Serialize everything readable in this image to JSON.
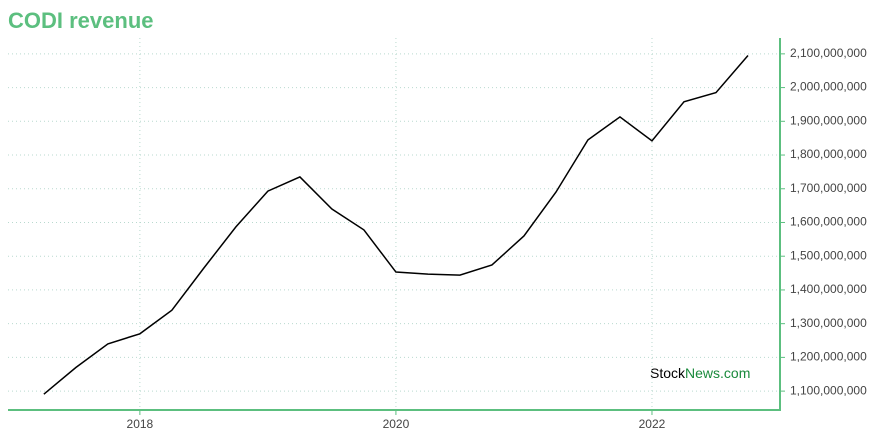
{
  "chart_data": {
    "type": "line",
    "title": "CODI revenue",
    "x": [
      2017.25,
      2017.5,
      2017.75,
      2018,
      2018.25,
      2018.5,
      2018.75,
      2019,
      2019.25,
      2019.5,
      2019.75,
      2020,
      2020.25,
      2020.5,
      2020.75,
      2021,
      2021.25,
      2021.5,
      2021.75,
      2022,
      2022.25,
      2022.5,
      2022.75
    ],
    "series": [
      {
        "name": "Revenue",
        "color": "#000000",
        "values": [
          1091000000,
          1170000000,
          1240000000,
          1270000000,
          1340000000,
          1465000000,
          1587000000,
          1693000000,
          1735000000,
          1640000000,
          1578000000,
          1453000000,
          1447000000,
          1444000000,
          1474000000,
          1560000000,
          1690000000,
          1845000000,
          1913000000,
          1842000000,
          1958000000,
          1985000000,
          2095000000
        ]
      }
    ],
    "xlim": [
      2016.97,
      2023.0
    ],
    "xticks": [
      2018,
      2020,
      2022
    ],
    "ylim": [
      1044000000,
      2147000000
    ],
    "yticks": [
      {
        "value": 1100000000,
        "label": "1,100,000,000"
      },
      {
        "value": 1200000000,
        "label": "1,200,000,000"
      },
      {
        "value": 1300000000,
        "label": "1,300,000,000"
      },
      {
        "value": 1400000000,
        "label": "1,400,000,000"
      },
      {
        "value": 1500000000,
        "label": "1,500,000,000"
      },
      {
        "value": 1600000000,
        "label": "1,600,000,000"
      },
      {
        "value": 1700000000,
        "label": "1,700,000,000"
      },
      {
        "value": 1800000000,
        "label": "1,800,000,000"
      },
      {
        "value": 1900000000,
        "label": "1,900,000,000"
      },
      {
        "value": 2000000000,
        "label": "2,000,000,000"
      },
      {
        "value": 2100000000,
        "label": "2,100,000,000"
      }
    ],
    "grid": true,
    "axis_color": "#5cbf7f",
    "watermark": {
      "stock": "Stock",
      "news": "News.com"
    }
  }
}
